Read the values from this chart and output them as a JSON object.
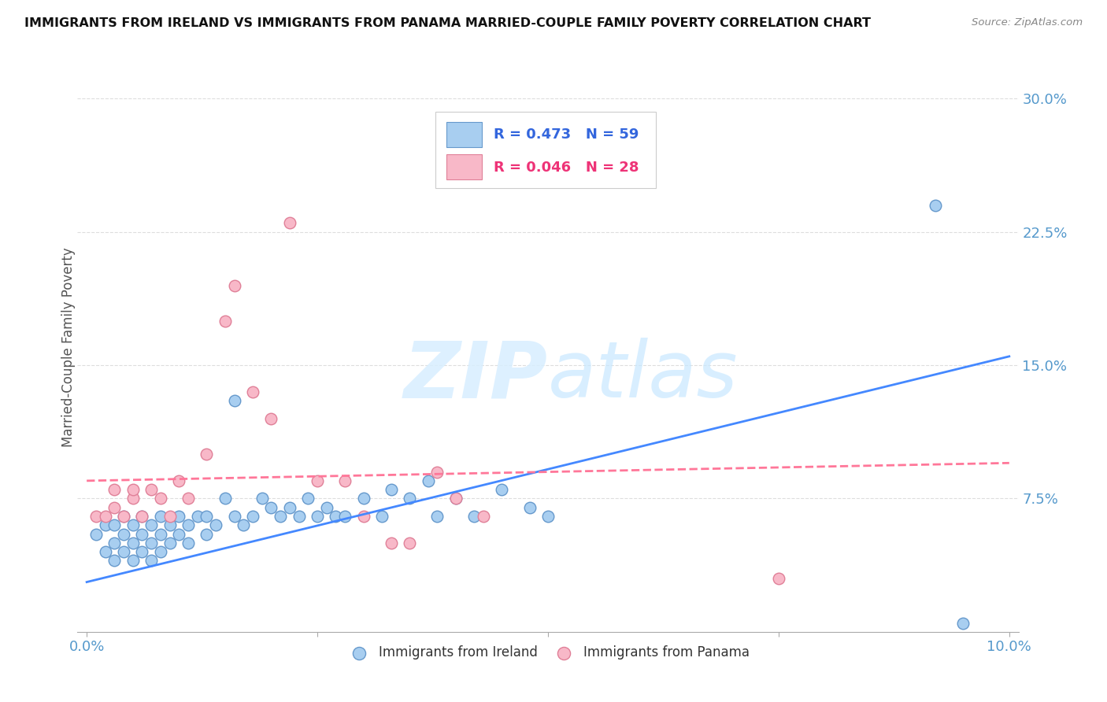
{
  "title": "IMMIGRANTS FROM IRELAND VS IMMIGRANTS FROM PANAMA MARRIED-COUPLE FAMILY POVERTY CORRELATION CHART",
  "source": "Source: ZipAtlas.com",
  "ylabel": "Married-Couple Family Poverty",
  "yticks": [
    "7.5%",
    "15.0%",
    "22.5%",
    "30.0%"
  ],
  "ytick_vals": [
    0.075,
    0.15,
    0.225,
    0.3
  ],
  "xlim": [
    0.0,
    0.1
  ],
  "ylim": [
    0.0,
    0.32
  ],
  "legend1_R": "0.473",
  "legend1_N": "59",
  "legend2_R": "0.046",
  "legend2_N": "28",
  "ireland_color": "#A8CEF0",
  "ireland_edge": "#6699CC",
  "panama_color": "#F8B8C8",
  "panama_edge": "#E08098",
  "ireland_line_color": "#4488FF",
  "panama_line_color": "#FF7799",
  "watermark_color": "#D8EEFF",
  "ireland_x": [
    0.001,
    0.002,
    0.002,
    0.003,
    0.003,
    0.003,
    0.004,
    0.004,
    0.004,
    0.005,
    0.005,
    0.005,
    0.006,
    0.006,
    0.006,
    0.007,
    0.007,
    0.007,
    0.008,
    0.008,
    0.008,
    0.009,
    0.009,
    0.01,
    0.01,
    0.011,
    0.011,
    0.012,
    0.013,
    0.013,
    0.014,
    0.015,
    0.016,
    0.016,
    0.017,
    0.018,
    0.019,
    0.02,
    0.021,
    0.022,
    0.023,
    0.024,
    0.025,
    0.026,
    0.027,
    0.028,
    0.03,
    0.032,
    0.033,
    0.035,
    0.037,
    0.038,
    0.04,
    0.042,
    0.045,
    0.048,
    0.05,
    0.092,
    0.095
  ],
  "ireland_y": [
    0.055,
    0.045,
    0.06,
    0.04,
    0.05,
    0.06,
    0.045,
    0.055,
    0.065,
    0.04,
    0.05,
    0.06,
    0.045,
    0.055,
    0.065,
    0.04,
    0.05,
    0.06,
    0.045,
    0.055,
    0.065,
    0.05,
    0.06,
    0.055,
    0.065,
    0.05,
    0.06,
    0.065,
    0.055,
    0.065,
    0.06,
    0.075,
    0.065,
    0.13,
    0.06,
    0.065,
    0.075,
    0.07,
    0.065,
    0.07,
    0.065,
    0.075,
    0.065,
    0.07,
    0.065,
    0.065,
    0.075,
    0.065,
    0.08,
    0.075,
    0.085,
    0.065,
    0.075,
    0.065,
    0.08,
    0.07,
    0.065,
    0.24,
    0.005
  ],
  "panama_x": [
    0.001,
    0.002,
    0.003,
    0.003,
    0.004,
    0.005,
    0.005,
    0.006,
    0.007,
    0.008,
    0.009,
    0.01,
    0.011,
    0.013,
    0.015,
    0.016,
    0.018,
    0.02,
    0.022,
    0.025,
    0.028,
    0.03,
    0.033,
    0.035,
    0.038,
    0.04,
    0.043,
    0.075
  ],
  "panama_y": [
    0.065,
    0.065,
    0.07,
    0.08,
    0.065,
    0.075,
    0.08,
    0.065,
    0.08,
    0.075,
    0.065,
    0.085,
    0.075,
    0.1,
    0.175,
    0.195,
    0.135,
    0.12,
    0.23,
    0.085,
    0.085,
    0.065,
    0.05,
    0.05,
    0.09,
    0.075,
    0.065,
    0.03
  ]
}
